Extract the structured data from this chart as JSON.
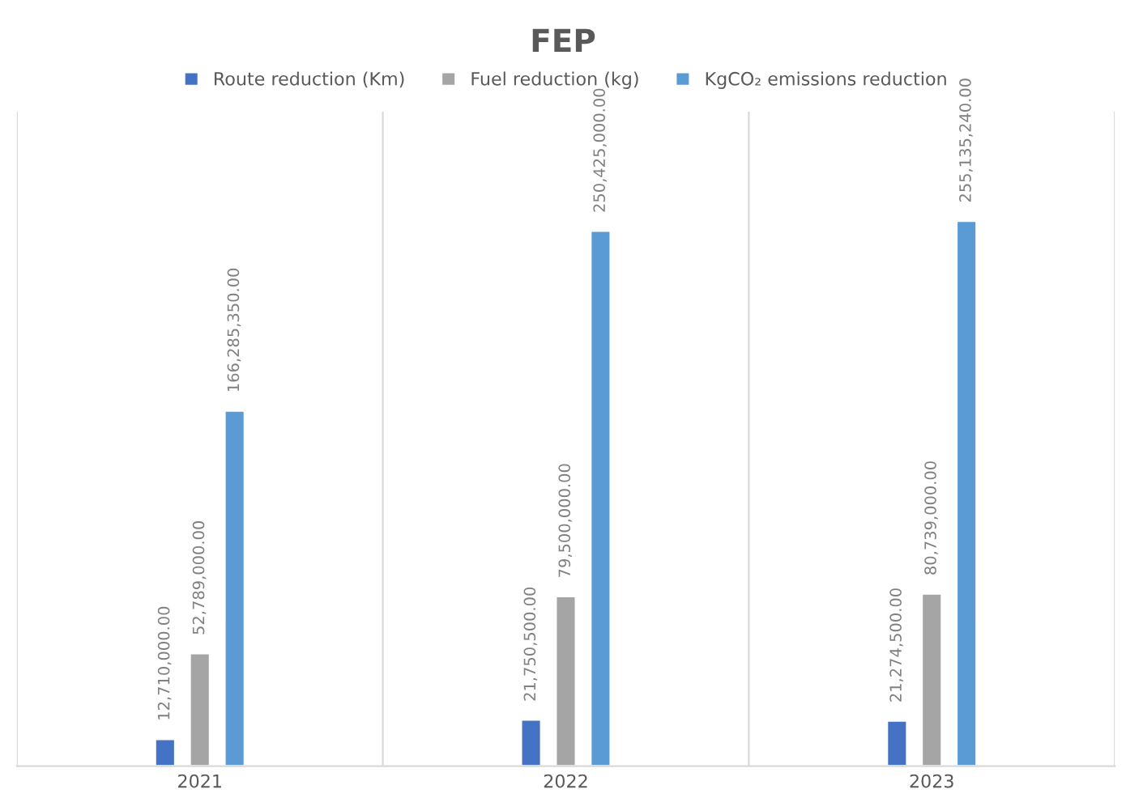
{
  "chart_data": {
    "type": "bar",
    "title": "FEP",
    "categories": [
      "2021",
      "2022",
      "2023"
    ],
    "series": [
      {
        "name": "Route reduction (Km)",
        "color": "#4472c4",
        "values": [
          12710000,
          21750500,
          21274500
        ],
        "value_labels": [
          "12,710,000.00",
          "21,750,500.00",
          "21,274,500.00"
        ]
      },
      {
        "name": "Fuel reduction (kg)",
        "color": "#a5a5a5",
        "values": [
          52789000,
          79500000,
          80739000
        ],
        "value_labels": [
          "52,789,000.00",
          "79,500,000.00",
          "80,739,000.00"
        ]
      },
      {
        "name": "KgCO₂ emissions reduction",
        "color": "#5b9bd5",
        "values": [
          166285350,
          250425000,
          255135240
        ],
        "value_labels": [
          "166,285,350.00",
          "250,425,000.00",
          "255,135,240.00"
        ]
      }
    ],
    "grid": "x",
    "legend": "top",
    "tick_labels": "x"
  }
}
